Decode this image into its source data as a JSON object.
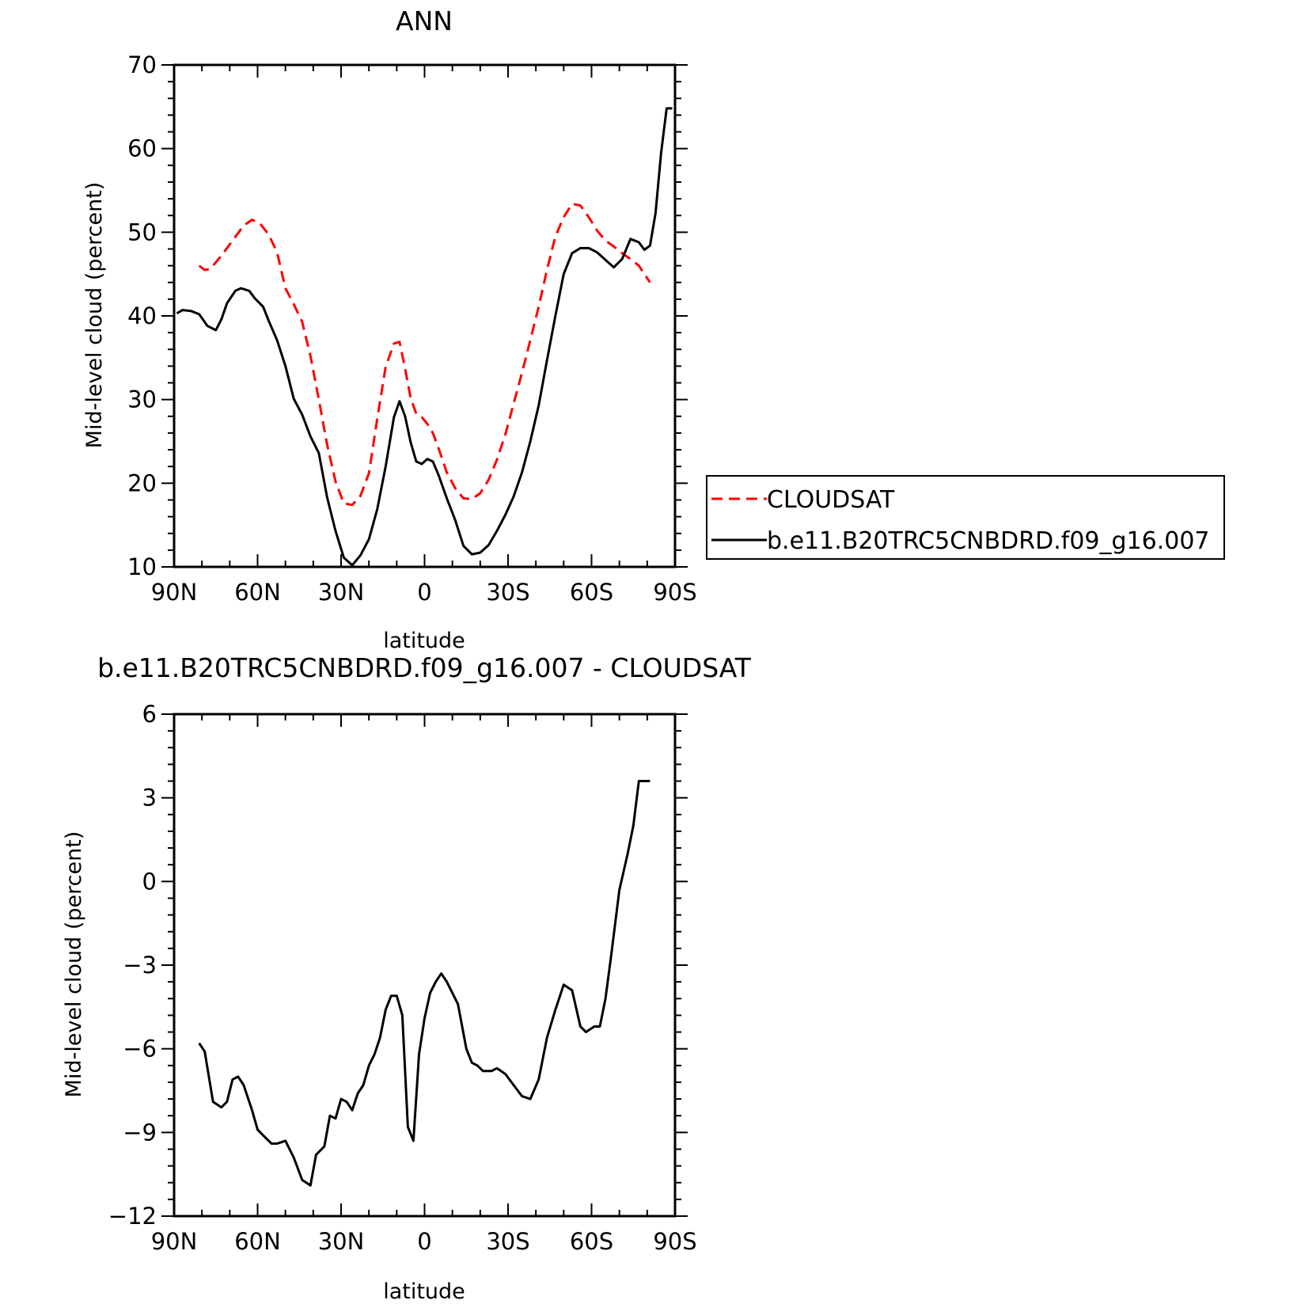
{
  "chart_data": [
    {
      "type": "line",
      "title": "ANN",
      "xlabel": "latitude",
      "ylabel": "Mid-level cloud (percent)",
      "xlim": [
        90,
        -90
      ],
      "ylim": [
        10,
        70
      ],
      "xticks": [
        90,
        60,
        30,
        0,
        -30,
        -60,
        -90
      ],
      "xtick_labels": [
        "90N",
        "60N",
        "30N",
        "0",
        "30S",
        "60S",
        "90S"
      ],
      "yticks": [
        10,
        20,
        30,
        40,
        50,
        60,
        70
      ],
      "ytick_labels": [
        "10",
        "20",
        "30",
        "40",
        "50",
        "60",
        "70"
      ],
      "grid": false,
      "legend": "right",
      "series": [
        {
          "name": "CLOUDSAT",
          "color": "#ff0000",
          "style": "dashed",
          "x": [
            81,
            79,
            77,
            73,
            69,
            65,
            62,
            59,
            56,
            53,
            50,
            47,
            44,
            41,
            38,
            35,
            32,
            29,
            26,
            23,
            20,
            17,
            14,
            11,
            9,
            7,
            5,
            3,
            1,
            -1,
            -3,
            -5,
            -8,
            -11,
            -14,
            -17,
            -20,
            -23,
            -26,
            -29,
            -32,
            -35,
            -38,
            -41,
            -44,
            -47,
            -50,
            -53,
            -56,
            -59,
            -62,
            -65,
            -68,
            -71,
            -74,
            -77,
            -79,
            -81
          ],
          "y": [
            46.0,
            45.5,
            45.6,
            47.2,
            49.0,
            50.8,
            51.5,
            51.0,
            49.7,
            47.6,
            43.3,
            41.4,
            39.3,
            35.2,
            30.0,
            24.6,
            20.2,
            17.6,
            17.4,
            18.5,
            21.2,
            27.7,
            33.9,
            36.7,
            36.9,
            33.7,
            30.2,
            28.3,
            27.9,
            27.1,
            26.0,
            24.2,
            21.3,
            19.4,
            18.2,
            18.1,
            18.8,
            20.4,
            22.8,
            25.8,
            29.5,
            33.2,
            37.1,
            41.1,
            45.5,
            49.5,
            51.8,
            53.4,
            53.2,
            51.8,
            50.2,
            49.0,
            48.3,
            47.5,
            46.8,
            46.0,
            45.0,
            44.0
          ]
        },
        {
          "name": "b.e11.B20TRC5CNBDRD.f09_g16.007",
          "color": "#000000",
          "style": "solid",
          "x": [
            89,
            87,
            84,
            81,
            78,
            75,
            73,
            71,
            68,
            66,
            63,
            61,
            58,
            56,
            53,
            50,
            47,
            44,
            41,
            38,
            35,
            32,
            29,
            26,
            23,
            20,
            17,
            14,
            11,
            9,
            7,
            5,
            3,
            1,
            -1,
            -3,
            -5,
            -8,
            -11,
            -14,
            -17,
            -20,
            -23,
            -26,
            -29,
            -32,
            -35,
            -38,
            -41,
            -44,
            -47,
            -50,
            -53,
            -56,
            -59,
            -62,
            -65,
            -68,
            -71,
            -74,
            -77,
            -79,
            -81,
            -83,
            -85,
            -87,
            -89
          ],
          "y": [
            40.3,
            40.7,
            40.6,
            40.2,
            38.8,
            38.3,
            39.6,
            41.5,
            43.0,
            43.3,
            43.0,
            42.1,
            41.1,
            39.4,
            37.1,
            34.0,
            30.1,
            28.2,
            25.6,
            23.6,
            18.3,
            14.3,
            11.1,
            10.2,
            11.4,
            13.3,
            16.9,
            22.0,
            27.9,
            29.8,
            28.0,
            24.9,
            22.6,
            22.3,
            22.9,
            22.6,
            21.0,
            18.2,
            15.6,
            12.5,
            11.5,
            11.7,
            12.6,
            14.3,
            16.2,
            18.4,
            21.3,
            25.0,
            29.3,
            34.7,
            40.0,
            45.0,
            47.5,
            48.1,
            48.1,
            47.6,
            46.7,
            45.8,
            46.8,
            49.2,
            48.8,
            47.9,
            48.4,
            52.3,
            59.5,
            64.8,
            64.8
          ]
        }
      ]
    },
    {
      "type": "line",
      "title": "b.e11.B20TRC5CNBDRD.f09_g16.007 - CLOUDSAT",
      "xlabel": "latitude",
      "ylabel": "Mid-level cloud (percent)",
      "xlim": [
        90,
        -90
      ],
      "ylim": [
        -12,
        6
      ],
      "xticks": [
        90,
        60,
        30,
        0,
        -30,
        -60,
        -90
      ],
      "xtick_labels": [
        "90N",
        "60N",
        "30N",
        "0",
        "30S",
        "60S",
        "90S"
      ],
      "yticks": [
        -12,
        -9,
        -6,
        -3,
        0,
        3,
        6
      ],
      "ytick_labels": [
        "-12",
        "-9",
        "-6",
        "-3",
        "0",
        "3",
        "6"
      ],
      "grid": false,
      "series": [
        {
          "color": "#000000",
          "style": "solid",
          "x": [
            81,
            79,
            76,
            73,
            71,
            69,
            67,
            65,
            62,
            60,
            58,
            55,
            53,
            50,
            47,
            44,
            41,
            39,
            36,
            34,
            32,
            30,
            28,
            26,
            24,
            22,
            20,
            18,
            16,
            14,
            12,
            10,
            8,
            6,
            4,
            2,
            0,
            -2,
            -4,
            -6,
            -8,
            -10,
            -12,
            -15,
            -17,
            -19,
            -21,
            -24,
            -26,
            -29,
            -32,
            -35,
            -38,
            -41,
            -44,
            -47,
            -50,
            -53,
            -56,
            -58,
            -61,
            -63,
            -65,
            -67,
            -70,
            -73,
            -75,
            -77,
            -79,
            -81
          ],
          "y": [
            -5.8,
            -6.1,
            -7.9,
            -8.1,
            -7.9,
            -7.1,
            -7.0,
            -7.3,
            -8.2,
            -8.9,
            -9.1,
            -9.4,
            -9.4,
            -9.3,
            -9.9,
            -10.7,
            -10.9,
            -9.8,
            -9.5,
            -8.4,
            -8.5,
            -7.8,
            -7.9,
            -8.2,
            -7.6,
            -7.3,
            -6.6,
            -6.2,
            -5.6,
            -4.6,
            -4.1,
            -4.1,
            -4.8,
            -8.8,
            -9.3,
            -6.2,
            -4.9,
            -4.0,
            -3.6,
            -3.3,
            -3.6,
            -4.0,
            -4.4,
            -6.0,
            -6.5,
            -6.6,
            -6.8,
            -6.8,
            -6.7,
            -6.9,
            -7.3,
            -7.7,
            -7.8,
            -7.1,
            -5.6,
            -4.6,
            -3.7,
            -3.9,
            -5.2,
            -5.4,
            -5.2,
            -5.2,
            -4.2,
            -2.7,
            -0.3,
            1.0,
            2.0,
            3.6,
            3.6,
            3.6
          ]
        }
      ]
    }
  ],
  "legend": {
    "entries": [
      "CLOUDSAT",
      "b.e11.B20TRC5CNBDRD.f09_g16.007"
    ]
  }
}
